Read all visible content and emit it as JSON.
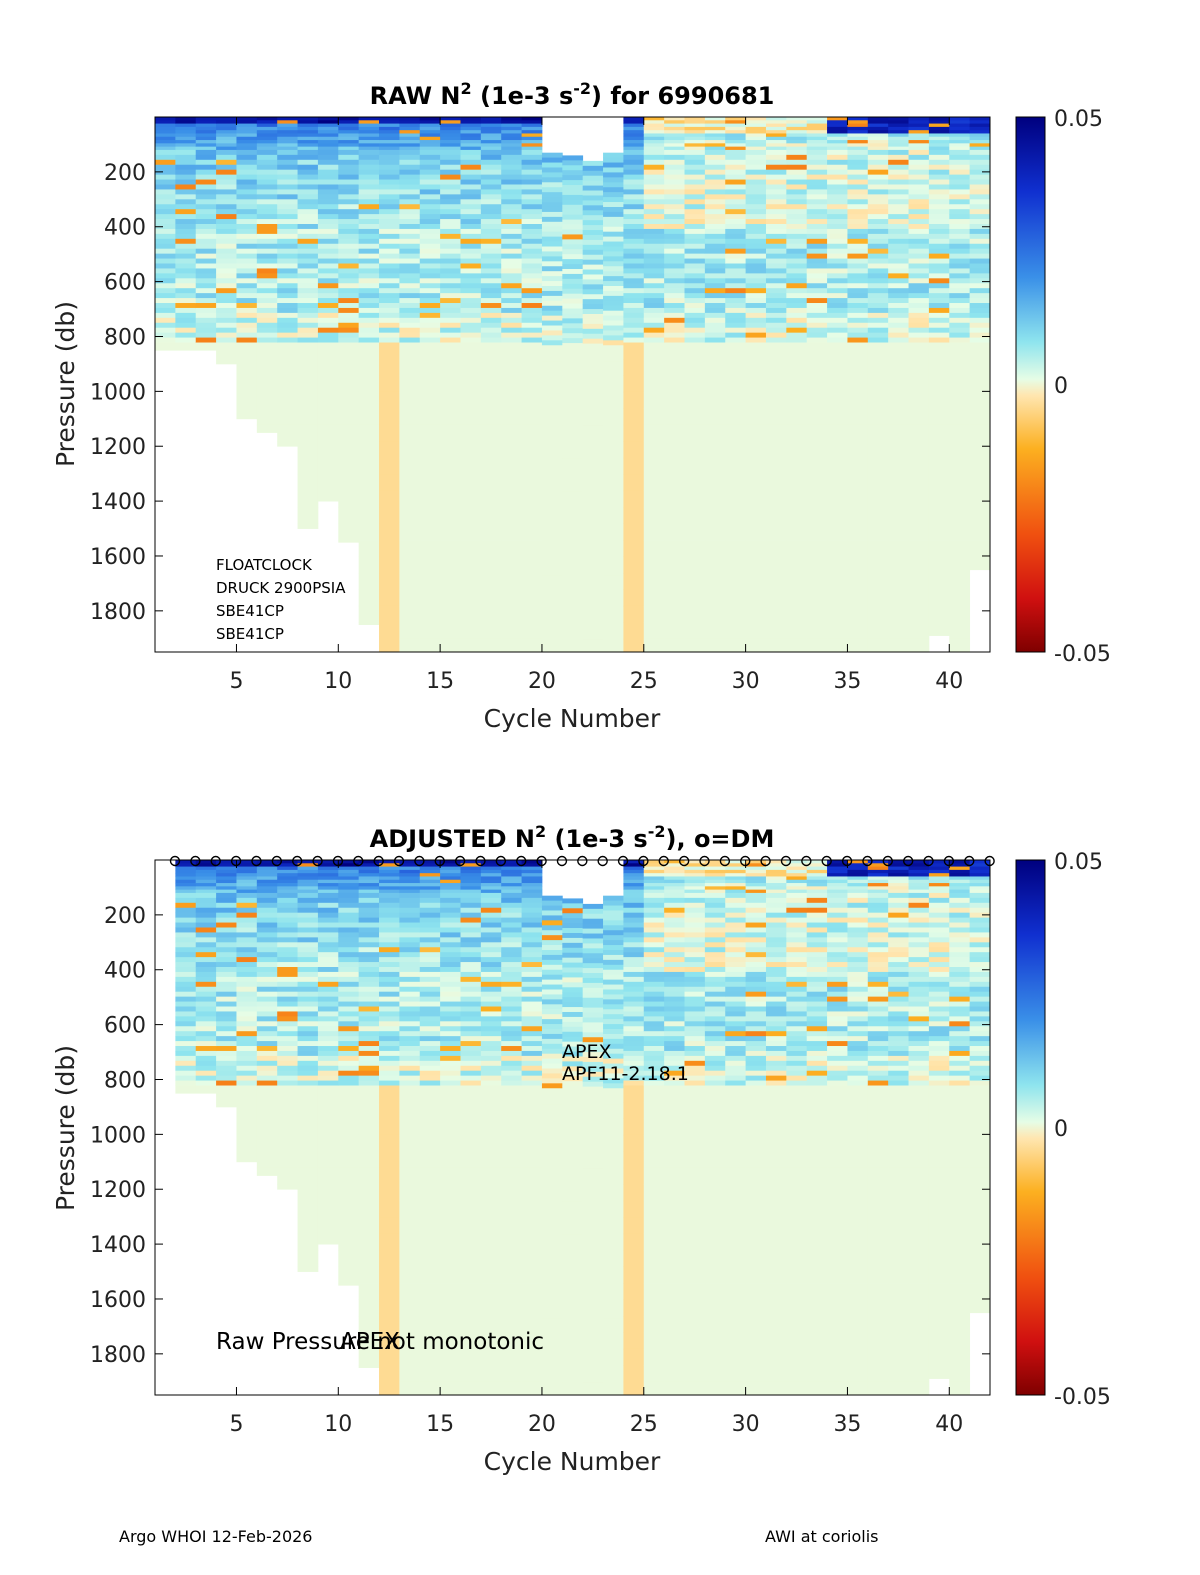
{
  "chart_data": [
    {
      "type": "heatmap",
      "title_pre": "RAW N",
      "title_sup1": "2",
      "title_mid": " (1e-3 s",
      "title_sup2": "-2",
      "title_post": ") for 6990681",
      "xlabel": "Cycle Number",
      "ylabel": "Pressure (db)",
      "xlim": [
        1,
        42
      ],
      "ylim": [
        0,
        1950
      ],
      "xticks": [
        "5",
        "10",
        "15",
        "20",
        "25",
        "30",
        "35",
        "40"
      ],
      "yticks": [
        "200",
        "400",
        "600",
        "800",
        "1000",
        "1200",
        "1400",
        "1600",
        "1800"
      ],
      "colorbar": {
        "range": [
          -0.05,
          0.05
        ],
        "ticks": [
          "0.05",
          "0",
          "-0.05"
        ]
      },
      "annotations": [
        "FLOATCLOCK",
        "DRUCK 2900PSIA",
        "SBE41CP",
        "SBE41CP"
      ],
      "dm_markers": false
    },
    {
      "type": "heatmap",
      "title_pre": "ADJUSTED N",
      "title_sup1": "2",
      "title_mid": " (1e-3 s",
      "title_sup2": "-2",
      "title_post": "), o=DM",
      "xlabel": "Cycle Number",
      "ylabel": "Pressure (db)",
      "xlim": [
        1,
        42
      ],
      "ylim": [
        0,
        1950
      ],
      "xticks": [
        "5",
        "10",
        "15",
        "20",
        "25",
        "30",
        "35",
        "40"
      ],
      "yticks": [
        "200",
        "400",
        "600",
        "800",
        "1000",
        "1200",
        "1400",
        "1600",
        "1800"
      ],
      "colorbar": {
        "range": [
          -0.05,
          0.05
        ],
        "ticks": [
          "0.05",
          "0",
          "-0.05"
        ]
      },
      "annotations": [
        "APEX",
        "APF11-2.18.1"
      ],
      "overlay_text_1": "Raw Pressure not monotonic",
      "overlay_text_2": "APEX",
      "dm_markers": true
    }
  ],
  "max_pressure": [
    850,
    850,
    850,
    900,
    1100,
    1150,
    1200,
    1500,
    1400,
    1550,
    1850,
    1950,
    1950,
    1950,
    1950,
    1950,
    1950,
    1950,
    1950,
    1950,
    1950,
    1950,
    1950,
    1950,
    1950,
    1950,
    1950,
    1950,
    1950,
    1950,
    1950,
    1950,
    1950,
    1950,
    1950,
    1950,
    1950,
    1950,
    1890,
    1950,
    1650
  ],
  "shallow_gaps": {
    "cycles": [
      19,
      20,
      21,
      22,
      23
    ],
    "min_pressure": [
      0,
      130,
      140,
      160,
      130
    ]
  },
  "dm_cycles": [
    2,
    3,
    4,
    5,
    6,
    7,
    8,
    9,
    10,
    11,
    12,
    13,
    14,
    15,
    16,
    17,
    18,
    19,
    20,
    21,
    22,
    23,
    24,
    25,
    26,
    27,
    28,
    29,
    30,
    31,
    32,
    33,
    34,
    35,
    36,
    37,
    38,
    39,
    40,
    41,
    42
  ],
  "footer": {
    "left": "Argo WHOI 12-Feb-2026",
    "right": "AWI at coriolis"
  }
}
